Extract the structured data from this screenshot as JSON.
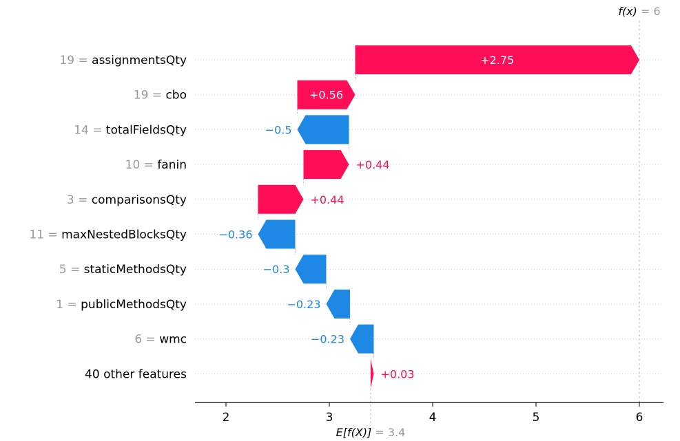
{
  "chart_data": {
    "type": "waterfall",
    "title": "",
    "base_value": 3.4,
    "base_label_expr": "E[f(X)]",
    "base_label_value": "= 3.4",
    "output_value": 6,
    "output_label_expr": "f(x)",
    "output_label_value": "= 6",
    "xlim": [
      1.7,
      6.25
    ],
    "xticks": [
      2,
      3,
      4,
      5,
      6
    ],
    "xtick_labels": [
      "2",
      "3",
      "4",
      "5",
      "6"
    ],
    "grid": "dotted horizontal row lines, dashed vertical lines at base and output",
    "colors": {
      "positive": "#ff0d57",
      "negative": "#1e88e5",
      "guide": "#bbbbbb"
    },
    "features": [
      {
        "value": "19",
        "name": "assignmentsQty",
        "contribution": 2.75,
        "label": "+2.75",
        "start": 3.25,
        "end": 6.0
      },
      {
        "value": "19",
        "name": "cbo",
        "contribution": 0.56,
        "label": "+0.56",
        "start": 2.69,
        "end": 3.25
      },
      {
        "value": "14",
        "name": "totalFieldsQty",
        "contribution": -0.5,
        "label": "−0.5",
        "start": 3.19,
        "end": 2.69
      },
      {
        "value": "10",
        "name": "fanin",
        "contribution": 0.44,
        "label": "+0.44",
        "start": 2.75,
        "end": 3.19
      },
      {
        "value": "3",
        "name": "comparisonsQty",
        "contribution": 0.44,
        "label": "+0.44",
        "start": 2.31,
        "end": 2.75
      },
      {
        "value": "11",
        "name": "maxNestedBlocksQty",
        "contribution": -0.36,
        "label": "−0.36",
        "start": 2.67,
        "end": 2.31
      },
      {
        "value": "5",
        "name": "staticMethodsQty",
        "contribution": -0.3,
        "label": "−0.3",
        "start": 2.97,
        "end": 2.67
      },
      {
        "value": "1",
        "name": "publicMethodsQty",
        "contribution": -0.23,
        "label": "−0.23",
        "start": 3.2,
        "end": 2.97
      },
      {
        "value": "6",
        "name": "wmc",
        "contribution": -0.23,
        "label": "−0.23",
        "start": 3.43,
        "end": 3.2
      },
      {
        "value": "",
        "name": "40 other features",
        "contribution": 0.03,
        "label": "+0.03",
        "start": 3.4,
        "end": 3.43
      }
    ]
  }
}
